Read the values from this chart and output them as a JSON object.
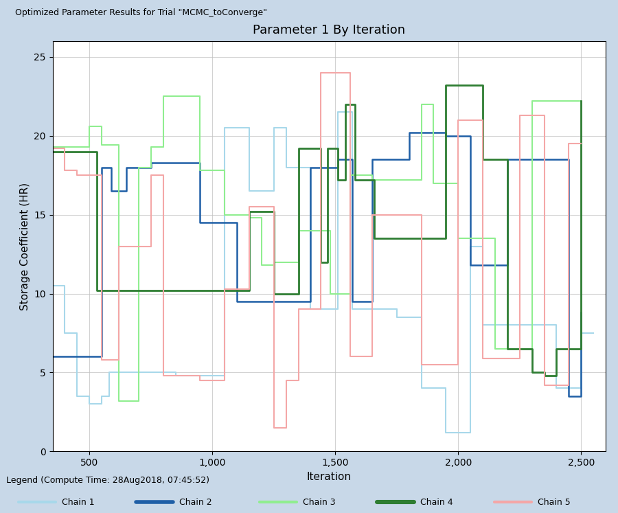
{
  "title": "Parameter 1 By Iteration",
  "xlabel": "Iteration",
  "ylabel": "Storage Coefficient (HR)",
  "xlim": [
    350,
    2600
  ],
  "ylim": [
    0,
    26
  ],
  "yticks": [
    0,
    5,
    10,
    15,
    20,
    25
  ],
  "xticks": [
    500,
    1000,
    1500,
    2000,
    2500
  ],
  "xticklabels": [
    "500",
    "1,000",
    "1,500",
    "2,000",
    "2,500"
  ],
  "chain_colors": {
    "Chain 1": "#a8d8ea",
    "Chain 2": "#1f5fa6",
    "Chain 3": "#90ee90",
    "Chain 4": "#2e7d32",
    "Chain 5": "#f4a7a7"
  },
  "legend_text": "Legend (Compute Time: 28Aug2018, 07:45:52)",
  "window_title": "Optimized Parameter Results for Trial \"MCMC_toConverge\"",
  "bg_color": "#dce6f1",
  "plot_bg": "#ffffff",
  "grid_color": "#c0c0c0",
  "title_fontsize": 13,
  "label_fontsize": 11,
  "tick_fontsize": 10
}
